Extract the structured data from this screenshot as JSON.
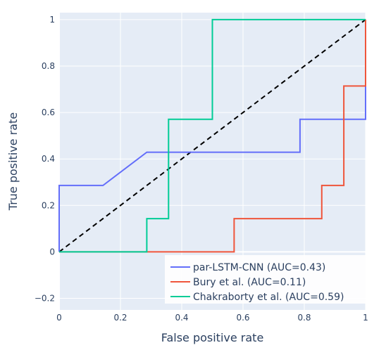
{
  "chart_data": {
    "type": "line",
    "xlabel": "False positive rate",
    "ylabel": "True positive rate",
    "xlim": [
      0,
      1
    ],
    "ylim": [
      -0.25,
      1.03
    ],
    "x_ticks": [
      0,
      0.2,
      0.4,
      0.6,
      0.8,
      1
    ],
    "x_tick_labels": [
      "0",
      "0.2",
      "0.4",
      "0.6",
      "0.8",
      "1"
    ],
    "y_ticks": [
      -0.2,
      0,
      0.2,
      0.4,
      0.6,
      0.8,
      1
    ],
    "y_tick_labels": [
      "−0.2",
      "0",
      "0.2",
      "0.4",
      "0.6",
      "0.8",
      "1"
    ],
    "grid": true,
    "legend_position": "bottom-right",
    "series": [
      {
        "name": "par-LSTM-CNN (AUC=0.43)",
        "color": "#636efa",
        "x": [
          0,
          0,
          0.143,
          0.286,
          0.786,
          0.786,
          1,
          1
        ],
        "y": [
          0,
          0.286,
          0.286,
          0.429,
          0.429,
          0.571,
          0.571,
          1
        ]
      },
      {
        "name": "Bury et al. (AUC=0.11)",
        "color": "#ef553b",
        "x": [
          0,
          0.571,
          0.571,
          0.857,
          0.857,
          0.929,
          0.929,
          1,
          1
        ],
        "y": [
          0,
          0,
          0.143,
          0.143,
          0.286,
          0.286,
          0.714,
          0.714,
          1
        ]
      },
      {
        "name": "Chakraborty et al. (AUC=0.59)",
        "color": "#00cc96",
        "x": [
          0,
          0.286,
          0.286,
          0.357,
          0.357,
          0.5,
          0.5,
          1
        ],
        "y": [
          0,
          0,
          0.143,
          0.143,
          0.571,
          0.571,
          1,
          1
        ]
      }
    ],
    "reference_line": {
      "color": "#000000",
      "x": [
        0,
        1
      ],
      "y": [
        0,
        1
      ]
    }
  }
}
